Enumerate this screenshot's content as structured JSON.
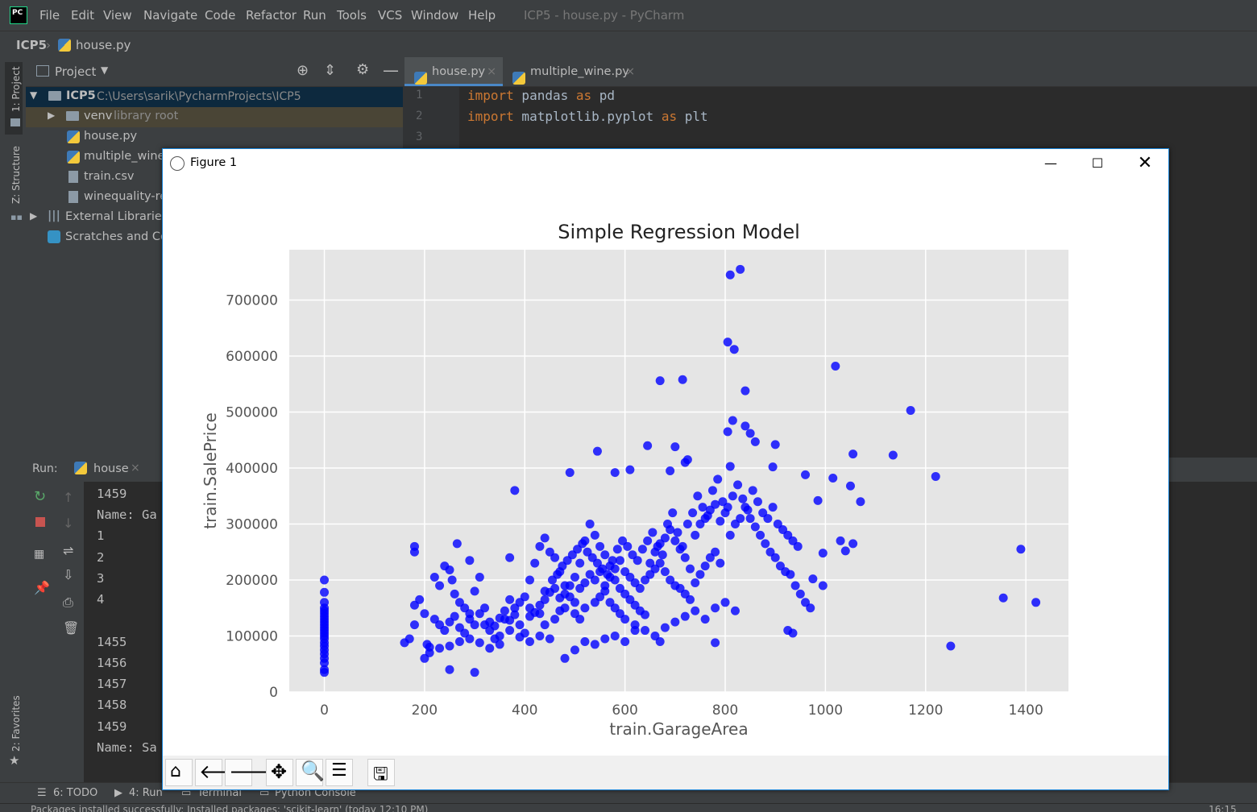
{
  "menubar": {
    "items": [
      "File",
      "Edit",
      "View",
      "Navigate",
      "Code",
      "Refactor",
      "Run",
      "Tools",
      "VCS",
      "Window",
      "Help"
    ],
    "window_title": "ICP5 - house.py - PyCharm",
    "logo_text": "PC"
  },
  "breadcrumb": {
    "project": "ICP5",
    "file": "house.py"
  },
  "left_strip": {
    "project_tab": "1: Project",
    "structure_tab": "Z: Structure",
    "favorites_tab": "2: Favorites"
  },
  "project_panel": {
    "title": "Project",
    "root": {
      "name": "ICP5",
      "path": "C:\\Users\\sarik\\PycharmProjects\\ICP5"
    },
    "items": [
      {
        "name": "venv",
        "note": "library root"
      },
      {
        "name": "house.py"
      },
      {
        "name": "multiple_wine."
      },
      {
        "name": "train.csv"
      },
      {
        "name": "winequality-re"
      }
    ],
    "external": "External Libraries",
    "scratches": "Scratches and Con"
  },
  "editor": {
    "tabs": [
      "house.py",
      "multiple_wine.py"
    ],
    "lines": [
      {
        "num": "1",
        "kw1": "import",
        "mod": " pandas ",
        "kw2": "as",
        "alias": " pd"
      },
      {
        "num": "2",
        "kw1": "import",
        "mod": " matplotlib.pyplot ",
        "kw2": "as",
        "alias": " plt"
      },
      {
        "num": "3"
      }
    ]
  },
  "run_panel": {
    "label": "Run:",
    "tab": "house",
    "output": [
      "1459",
      "Name: Ga",
      "1",
      "2",
      "3",
      "4",
      "",
      "1455",
      "1456",
      "1457",
      "1458",
      "1459",
      "Name: Sa"
    ]
  },
  "bottom_tools": {
    "todo": "6: TODO",
    "run": "4: Run",
    "terminal": "Terminal",
    "console": "Python Console"
  },
  "status": {
    "message": "Packages installed successfully: Installed packages: 'scikit-learn' (today 12:10 PM)",
    "time": "16:15"
  },
  "figure": {
    "title": "Figure 1"
  },
  "chart_data": {
    "type": "scatter",
    "title": "Simple Regression Model",
    "xlabel": "train.GarageArea",
    "ylabel": "train.SalePrice",
    "xlim": [
      -70,
      1485
    ],
    "ylim": [
      0,
      790000
    ],
    "xticks": [
      0,
      200,
      400,
      600,
      800,
      1000,
      1200,
      1400
    ],
    "yticks": [
      0,
      100000,
      200000,
      300000,
      400000,
      500000,
      600000,
      700000
    ],
    "grid": true,
    "color": "#0000ff",
    "points": [
      [
        0,
        35000
      ],
      [
        0,
        40000
      ],
      [
        0,
        52000
      ],
      [
        0,
        60000
      ],
      [
        0,
        68000
      ],
      [
        0,
        75000
      ],
      [
        0,
        82000
      ],
      [
        0,
        88000
      ],
      [
        0,
        95000
      ],
      [
        0,
        100000
      ],
      [
        0,
        105000
      ],
      [
        0,
        110000
      ],
      [
        0,
        115000
      ],
      [
        0,
        120000
      ],
      [
        0,
        125000
      ],
      [
        0,
        130000
      ],
      [
        0,
        135000
      ],
      [
        0,
        140000
      ],
      [
        0,
        145000
      ],
      [
        0,
        150000
      ],
      [
        0,
        160000
      ],
      [
        0,
        178000
      ],
      [
        0,
        200000
      ],
      [
        810,
        745000
      ],
      [
        830,
        755000
      ],
      [
        805,
        625000
      ],
      [
        818,
        612000
      ],
      [
        1020,
        582000
      ],
      [
        670,
        556000
      ],
      [
        715,
        558000
      ],
      [
        840,
        538000
      ],
      [
        1170,
        503000
      ],
      [
        815,
        485000
      ],
      [
        805,
        465000
      ],
      [
        840,
        475000
      ],
      [
        850,
        462000
      ],
      [
        860,
        447000
      ],
      [
        900,
        442000
      ],
      [
        645,
        440000
      ],
      [
        700,
        438000
      ],
      [
        545,
        430000
      ],
      [
        1135,
        423000
      ],
      [
        1055,
        425000
      ],
      [
        720,
        410000
      ],
      [
        725,
        415000
      ],
      [
        690,
        395000
      ],
      [
        610,
        397000
      ],
      [
        490,
        392000
      ],
      [
        810,
        403000
      ],
      [
        895,
        402000
      ],
      [
        960,
        388000
      ],
      [
        1220,
        385000
      ],
      [
        1015,
        382000
      ],
      [
        580,
        392000
      ],
      [
        380,
        360000
      ],
      [
        1050,
        368000
      ],
      [
        1070,
        340000
      ],
      [
        985,
        342000
      ],
      [
        1390,
        255000
      ],
      [
        1355,
        168000
      ],
      [
        1420,
        160000
      ],
      [
        1250,
        82000
      ],
      [
        1040,
        252000
      ],
      [
        1055,
        265000
      ],
      [
        1030,
        270000
      ],
      [
        995,
        190000
      ],
      [
        975,
        202000
      ],
      [
        995,
        248000
      ],
      [
        935,
        105000
      ],
      [
        925,
        110000
      ],
      [
        780,
        88000
      ],
      [
        670,
        90000
      ],
      [
        300,
        35000
      ],
      [
        250,
        40000
      ],
      [
        200,
        60000
      ],
      [
        180,
        250000
      ],
      [
        180,
        260000
      ],
      [
        265,
        265000
      ],
      [
        290,
        235000
      ],
      [
        370,
        240000
      ],
      [
        160,
        88000
      ],
      [
        170,
        95000
      ],
      [
        180,
        120000
      ],
      [
        180,
        155000
      ],
      [
        190,
        165000
      ],
      [
        200,
        140000
      ],
      [
        205,
        85000
      ],
      [
        210,
        80000
      ],
      [
        220,
        205000
      ],
      [
        230,
        190000
      ],
      [
        240,
        225000
      ],
      [
        250,
        218000
      ],
      [
        255,
        200000
      ],
      [
        260,
        175000
      ],
      [
        270,
        160000
      ],
      [
        280,
        150000
      ],
      [
        290,
        140000
      ],
      [
        300,
        180000
      ],
      [
        310,
        205000
      ],
      [
        320,
        120000
      ],
      [
        330,
        110000
      ],
      [
        340,
        95000
      ],
      [
        350,
        100000
      ],
      [
        360,
        130000
      ],
      [
        370,
        165000
      ],
      [
        380,
        150000
      ],
      [
        390,
        120000
      ],
      [
        400,
        105000
      ],
      [
        410,
        200000
      ],
      [
        420,
        230000
      ],
      [
        430,
        260000
      ],
      [
        440,
        275000
      ],
      [
        450,
        250000
      ],
      [
        460,
        240000
      ],
      [
        470,
        215000
      ],
      [
        480,
        190000
      ],
      [
        490,
        170000
      ],
      [
        500,
        160000
      ],
      [
        510,
        230000
      ],
      [
        520,
        270000
      ],
      [
        530,
        300000
      ],
      [
        540,
        280000
      ],
      [
        550,
        260000
      ],
      [
        560,
        245000
      ],
      [
        570,
        225000
      ],
      [
        580,
        200000
      ],
      [
        590,
        185000
      ],
      [
        600,
        175000
      ],
      [
        610,
        165000
      ],
      [
        620,
        155000
      ],
      [
        630,
        145000
      ],
      [
        640,
        138000
      ],
      [
        650,
        230000
      ],
      [
        660,
        250000
      ],
      [
        670,
        265000
      ],
      [
        680,
        275000
      ],
      [
        690,
        290000
      ],
      [
        700,
        270000
      ],
      [
        710,
        255000
      ],
      [
        720,
        240000
      ],
      [
        730,
        220000
      ],
      [
        740,
        280000
      ],
      [
        750,
        300000
      ],
      [
        760,
        310000
      ],
      [
        770,
        325000
      ],
      [
        780,
        335000
      ],
      [
        790,
        305000
      ],
      [
        800,
        320000
      ],
      [
        810,
        280000
      ],
      [
        820,
        300000
      ],
      [
        830,
        310000
      ],
      [
        840,
        330000
      ],
      [
        850,
        310000
      ],
      [
        860,
        295000
      ],
      [
        870,
        280000
      ],
      [
        880,
        265000
      ],
      [
        890,
        250000
      ],
      [
        900,
        240000
      ],
      [
        910,
        225000
      ],
      [
        920,
        215000
      ],
      [
        930,
        210000
      ],
      [
        940,
        190000
      ],
      [
        950,
        175000
      ],
      [
        960,
        160000
      ],
      [
        970,
        150000
      ],
      [
        220,
        130000
      ],
      [
        230,
        120000
      ],
      [
        240,
        110000
      ],
      [
        250,
        125000
      ],
      [
        260,
        135000
      ],
      [
        270,
        115000
      ],
      [
        280,
        105000
      ],
      [
        290,
        130000
      ],
      [
        300,
        120000
      ],
      [
        310,
        140000
      ],
      [
        320,
        150000
      ],
      [
        330,
        125000
      ],
      [
        340,
        118000
      ],
      [
        350,
        132000
      ],
      [
        360,
        145000
      ],
      [
        370,
        128000
      ],
      [
        380,
        138000
      ],
      [
        390,
        160000
      ],
      [
        400,
        170000
      ],
      [
        410,
        150000
      ],
      [
        420,
        142000
      ],
      [
        430,
        155000
      ],
      [
        440,
        165000
      ],
      [
        450,
        178000
      ],
      [
        460,
        185000
      ],
      [
        470,
        168000
      ],
      [
        480,
        175000
      ],
      [
        490,
        190000
      ],
      [
        500,
        205000
      ],
      [
        510,
        185000
      ],
      [
        520,
        195000
      ],
      [
        530,
        210000
      ],
      [
        540,
        200000
      ],
      [
        550,
        215000
      ],
      [
        560,
        190000
      ],
      [
        570,
        205000
      ],
      [
        580,
        220000
      ],
      [
        590,
        235000
      ],
      [
        600,
        215000
      ],
      [
        610,
        205000
      ],
      [
        620,
        195000
      ],
      [
        630,
        185000
      ],
      [
        640,
        200000
      ],
      [
        650,
        210000
      ],
      [
        660,
        220000
      ],
      [
        670,
        230000
      ],
      [
        680,
        215000
      ],
      [
        690,
        200000
      ],
      [
        700,
        190000
      ],
      [
        710,
        185000
      ],
      [
        720,
        175000
      ],
      [
        730,
        165000
      ],
      [
        740,
        195000
      ],
      [
        750,
        210000
      ],
      [
        760,
        225000
      ],
      [
        770,
        240000
      ],
      [
        780,
        250000
      ],
      [
        790,
        230000
      ],
      [
        410,
        135000
      ],
      [
        430,
        140000
      ],
      [
        440,
        120000
      ],
      [
        460,
        130000
      ],
      [
        470,
        145000
      ],
      [
        480,
        150000
      ],
      [
        500,
        140000
      ],
      [
        510,
        130000
      ],
      [
        520,
        150000
      ],
      [
        540,
        160000
      ],
      [
        550,
        170000
      ],
      [
        560,
        180000
      ],
      [
        570,
        160000
      ],
      [
        580,
        150000
      ],
      [
        590,
        140000
      ],
      [
        600,
        130000
      ],
      [
        620,
        120000
      ],
      [
        640,
        110000
      ],
      [
        660,
        100000
      ],
      [
        680,
        115000
      ],
      [
        700,
        125000
      ],
      [
        720,
        135000
      ],
      [
        740,
        145000
      ],
      [
        760,
        130000
      ],
      [
        780,
        150000
      ],
      [
        800,
        160000
      ],
      [
        820,
        145000
      ],
      [
        480,
        60000
      ],
      [
        500,
        75000
      ],
      [
        520,
        90000
      ],
      [
        540,
        85000
      ],
      [
        560,
        95000
      ],
      [
        580,
        100000
      ],
      [
        600,
        90000
      ],
      [
        620,
        110000
      ],
      [
        450,
        95000
      ],
      [
        430,
        100000
      ],
      [
        410,
        90000
      ],
      [
        390,
        98000
      ],
      [
        370,
        110000
      ],
      [
        350,
        85000
      ],
      [
        330,
        78000
      ],
      [
        310,
        88000
      ],
      [
        290,
        95000
      ],
      [
        270,
        90000
      ],
      [
        250,
        82000
      ],
      [
        230,
        78000
      ],
      [
        210,
        70000
      ],
      [
        440,
        180000
      ],
      [
        455,
        200000
      ],
      [
        465,
        210000
      ],
      [
        475,
        225000
      ],
      [
        485,
        235000
      ],
      [
        495,
        245000
      ],
      [
        505,
        255000
      ],
      [
        515,
        265000
      ],
      [
        525,
        250000
      ],
      [
        535,
        240000
      ],
      [
        545,
        230000
      ],
      [
        555,
        220000
      ],
      [
        565,
        210000
      ],
      [
        575,
        235000
      ],
      [
        585,
        255000
      ],
      [
        595,
        270000
      ],
      [
        605,
        260000
      ],
      [
        615,
        245000
      ],
      [
        625,
        235000
      ],
      [
        635,
        255000
      ],
      [
        645,
        270000
      ],
      [
        655,
        285000
      ],
      [
        665,
        260000
      ],
      [
        675,
        245000
      ],
      [
        685,
        300000
      ],
      [
        695,
        320000
      ],
      [
        705,
        285000
      ],
      [
        715,
        260000
      ],
      [
        725,
        300000
      ],
      [
        735,
        320000
      ],
      [
        745,
        350000
      ],
      [
        755,
        330000
      ],
      [
        765,
        315000
      ],
      [
        775,
        360000
      ],
      [
        785,
        380000
      ],
      [
        795,
        340000
      ],
      [
        805,
        330000
      ],
      [
        815,
        350000
      ],
      [
        825,
        370000
      ],
      [
        835,
        345000
      ],
      [
        845,
        325000
      ],
      [
        855,
        360000
      ],
      [
        865,
        340000
      ],
      [
        875,
        320000
      ],
      [
        885,
        310000
      ],
      [
        895,
        330000
      ],
      [
        905,
        300000
      ],
      [
        915,
        290000
      ],
      [
        925,
        280000
      ],
      [
        935,
        270000
      ],
      [
        945,
        260000
      ]
    ]
  }
}
